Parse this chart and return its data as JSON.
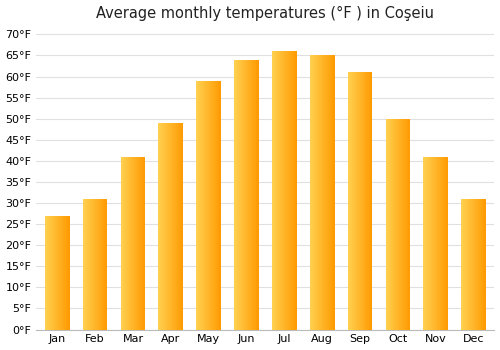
{
  "title": "Average monthly temperatures (°F ) in Coşeiu",
  "months": [
    "Jan",
    "Feb",
    "Mar",
    "Apr",
    "May",
    "Jun",
    "Jul",
    "Aug",
    "Sep",
    "Oct",
    "Nov",
    "Dec"
  ],
  "values": [
    27,
    31,
    41,
    49,
    59,
    64,
    66,
    65,
    61,
    50,
    41,
    31
  ],
  "bar_color_left": "#FFD060",
  "bar_color_right": "#FFA000",
  "ytick_values": [
    0,
    5,
    10,
    15,
    20,
    25,
    30,
    35,
    40,
    45,
    50,
    55,
    60,
    65,
    70
  ],
  "ylim": [
    0,
    72
  ],
  "background_color": "#ffffff",
  "grid_color": "#e0e0e0",
  "title_fontsize": 10.5,
  "tick_fontsize": 8
}
